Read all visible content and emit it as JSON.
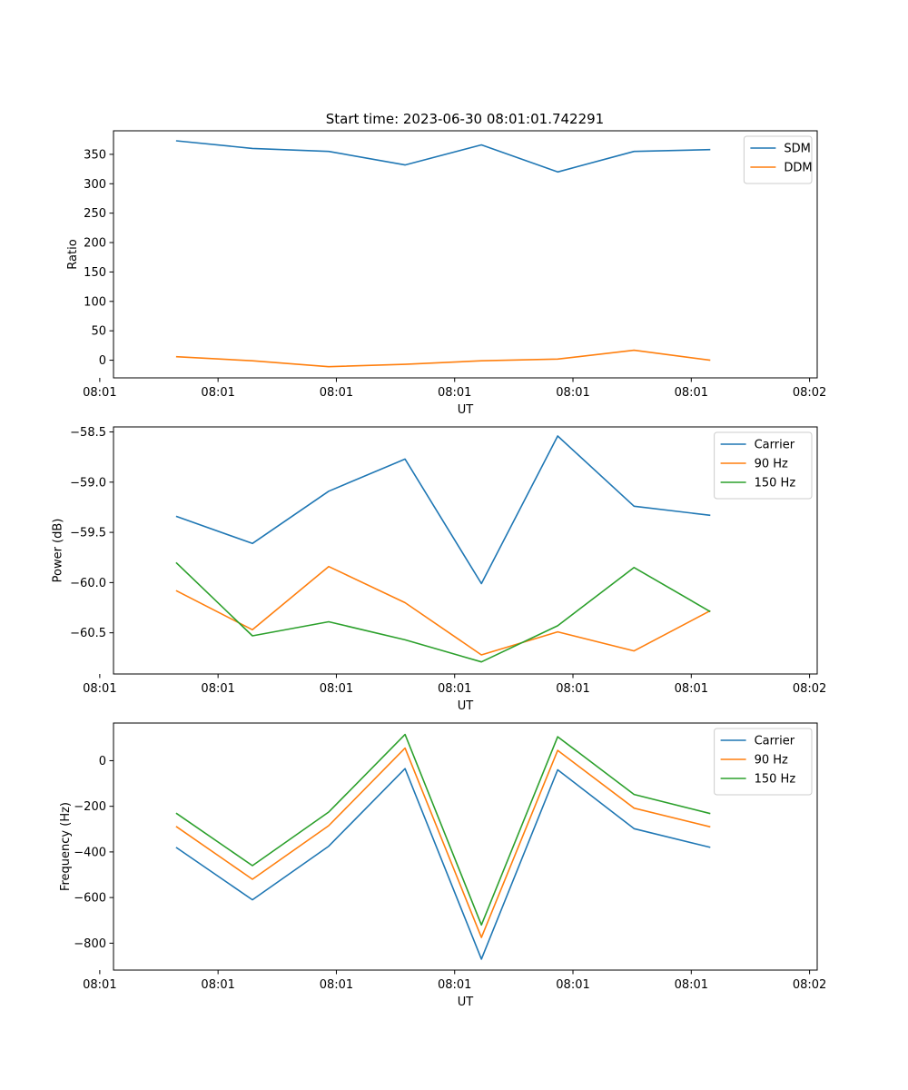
{
  "figure_title": "Start time: 2023-06-30 08:01:01.742291",
  "chart_data": [
    {
      "type": "line",
      "title": "Start time: 2023-06-30 08:01:01.742291",
      "xlabel": "UT",
      "ylabel": "Ratio",
      "x": [
        1,
        2,
        3,
        4,
        5,
        6,
        7,
        8
      ],
      "xlim": [
        0.18,
        9.4
      ],
      "xticks": [
        0,
        1.55,
        3.1,
        4.65,
        6.2,
        7.75,
        9.3
      ],
      "xtick_labels": [
        "08:01",
        "08:01",
        "08:01",
        "08:01",
        "08:01",
        "08:01",
        "08:02"
      ],
      "ylim": [
        -30,
        390
      ],
      "yticks": [
        0,
        50,
        100,
        150,
        200,
        250,
        300,
        350
      ],
      "ytick_labels": [
        "0",
        "50",
        "100",
        "150",
        "200",
        "250",
        "300",
        "350"
      ],
      "legend_position": "top-right",
      "series": [
        {
          "name": "SDM",
          "color": "#1f77b4",
          "values": [
            373,
            360,
            355,
            332,
            366,
            320,
            355,
            358
          ]
        },
        {
          "name": "DDM",
          "color": "#ff7f0e",
          "values": [
            6,
            -1,
            -11,
            -7,
            -1,
            2,
            17,
            0
          ]
        }
      ]
    },
    {
      "type": "line",
      "title": "",
      "xlabel": "UT",
      "ylabel": "Power (dB)",
      "x": [
        1,
        2,
        3,
        4,
        5,
        6,
        7,
        8
      ],
      "xlim": [
        0.18,
        9.4
      ],
      "xticks": [
        0,
        1.55,
        3.1,
        4.65,
        6.2,
        7.75,
        9.3
      ],
      "xtick_labels": [
        "08:01",
        "08:01",
        "08:01",
        "08:01",
        "08:01",
        "08:01",
        "08:02"
      ],
      "ylim": [
        -60.91,
        -58.45
      ],
      "yticks": [
        -60.5,
        -60.0,
        -59.5,
        -59.0,
        -58.5
      ],
      "ytick_labels": [
        "−60.5",
        "−60.0",
        "−59.5",
        "−59.0",
        "−58.5"
      ],
      "legend_position": "top-right",
      "series": [
        {
          "name": "Carrier",
          "color": "#1f77b4",
          "values": [
            -59.34,
            -59.61,
            -59.09,
            -58.77,
            -60.01,
            -58.54,
            -59.24,
            -59.33
          ]
        },
        {
          "name": "90 Hz",
          "color": "#ff7f0e",
          "values": [
            -60.08,
            -60.47,
            -59.84,
            -60.2,
            -60.72,
            -60.49,
            -60.68,
            -60.28
          ]
        },
        {
          "name": "150 Hz",
          "color": "#2ca02c",
          "values": [
            -59.8,
            -60.53,
            -60.39,
            -60.57,
            -60.79,
            -60.43,
            -59.85,
            -60.29
          ]
        }
      ]
    },
    {
      "type": "line",
      "title": "",
      "xlabel": "UT",
      "ylabel": "Frequency (Hz)",
      "x": [
        1,
        2,
        3,
        4,
        5,
        6,
        7,
        8
      ],
      "xlim": [
        0.18,
        9.4
      ],
      "xticks": [
        0,
        1.55,
        3.1,
        4.65,
        6.2,
        7.75,
        9.3
      ],
      "xtick_labels": [
        "08:01",
        "08:01",
        "08:01",
        "08:01",
        "08:01",
        "08:01",
        "08:02"
      ],
      "ylim": [
        -918,
        165
      ],
      "yticks": [
        -800,
        -600,
        -400,
        -200,
        0
      ],
      "ytick_labels": [
        "−800",
        "−600",
        "−400",
        "−200",
        "0"
      ],
      "legend_position": "top-right",
      "series": [
        {
          "name": "Carrier",
          "color": "#1f77b4",
          "values": [
            -380,
            -610,
            -375,
            -35,
            -870,
            -40,
            -298,
            -380
          ]
        },
        {
          "name": "90 Hz",
          "color": "#ff7f0e",
          "values": [
            -288,
            -520,
            -285,
            55,
            -775,
            45,
            -208,
            -290
          ]
        },
        {
          "name": "150 Hz",
          "color": "#2ca02c",
          "values": [
            -230,
            -460,
            -225,
            115,
            -720,
            105,
            -148,
            -232
          ]
        }
      ]
    }
  ]
}
